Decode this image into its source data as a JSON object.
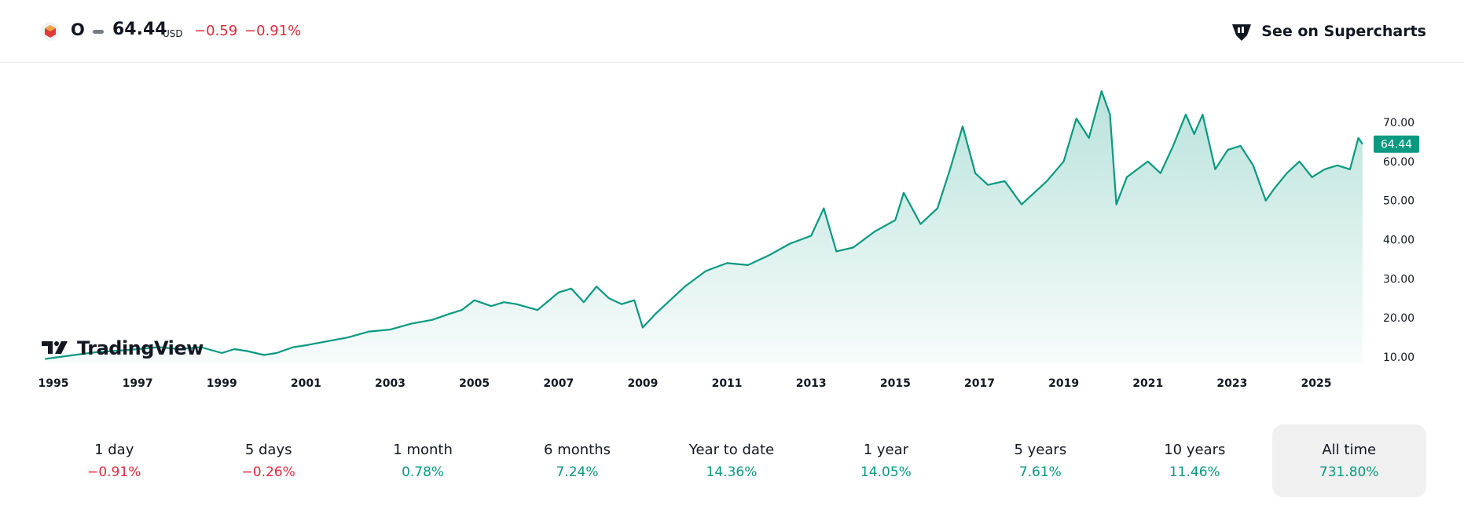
{
  "header": {
    "ticker": "O",
    "price": "64.44",
    "currency": "USD",
    "change": "−0.59",
    "change_pct": "−0.91%",
    "supercharts_label": "See on Supercharts"
  },
  "brand": "TradingView",
  "periods": [
    {
      "label": "1 day",
      "value": "−0.91%",
      "trend": "neg"
    },
    {
      "label": "5 days",
      "value": "−0.26%",
      "trend": "neg"
    },
    {
      "label": "1 month",
      "value": "0.78%",
      "trend": "pos"
    },
    {
      "label": "6 months",
      "value": "7.24%",
      "trend": "pos"
    },
    {
      "label": "Year to date",
      "value": "14.36%",
      "trend": "pos"
    },
    {
      "label": "1 year",
      "value": "14.05%",
      "trend": "pos"
    },
    {
      "label": "5 years",
      "value": "7.61%",
      "trend": "pos"
    },
    {
      "label": "10 years",
      "value": "11.46%",
      "trend": "pos"
    },
    {
      "label": "All time",
      "value": "731.80%",
      "trend": "pos",
      "active": true
    }
  ],
  "colors": {
    "line": "#089981",
    "negative": "#e0283c",
    "positive": "#089981",
    "price_tag": "#089981"
  },
  "chart_data": {
    "type": "area",
    "x_ticks": [
      "1995",
      "1997",
      "1999",
      "2001",
      "2003",
      "2005",
      "2007",
      "2009",
      "2011",
      "2013",
      "2015",
      "2017",
      "2019",
      "2021",
      "2023",
      "2025"
    ],
    "y_ticks": [
      "10.00",
      "20.00",
      "30.00",
      "40.00",
      "50.00",
      "60.00",
      "70.00"
    ],
    "ylim": [
      10,
      70
    ],
    "last_price_label": "64.44",
    "series": [
      {
        "x": [
          1994.8,
          1995.5,
          1996.0,
          1996.8,
          1997.5,
          1998.0,
          1998.5,
          1999.0,
          1999.3,
          1999.6,
          2000.0,
          2000.3,
          2000.7,
          2001.0,
          2001.5,
          2002.0,
          2002.5,
          2003.0,
          2003.5,
          2004.0,
          2004.4,
          2004.7,
          2005.0,
          2005.4,
          2005.7,
          2006.0,
          2006.5,
          2007.0,
          2007.3,
          2007.6,
          2007.9,
          2008.2,
          2008.5,
          2008.8,
          2009.0,
          2009.3,
          2009.6,
          2010.0,
          2010.5,
          2011.0,
          2011.5,
          2012.0,
          2012.5,
          2013.0,
          2013.3,
          2013.6,
          2014.0,
          2014.5,
          2015.0,
          2015.2,
          2015.6,
          2016.0,
          2016.3,
          2016.6,
          2016.9,
          2017.2,
          2017.6,
          2018.0,
          2018.3,
          2018.6,
          2019.0,
          2019.3,
          2019.6,
          2019.9,
          2020.1,
          2020.25,
          2020.5,
          2021.0,
          2021.3,
          2021.6,
          2021.9,
          2022.1,
          2022.3,
          2022.6,
          2022.9,
          2023.2,
          2023.5,
          2023.8,
          2024.0,
          2024.3,
          2024.6,
          2024.9,
          2025.2,
          2025.5,
          2025.8,
          2026.0,
          2026.1
        ],
        "y": [
          9.5,
          10.5,
          11.2,
          11.8,
          12.5,
          12.0,
          12.5,
          11.0,
          12.0,
          11.5,
          10.5,
          11.0,
          12.5,
          13.0,
          14.0,
          15.0,
          16.5,
          17.0,
          18.5,
          19.5,
          21.0,
          22.0,
          24.5,
          23.0,
          24.0,
          23.5,
          22.0,
          26.5,
          27.5,
          24.0,
          28.0,
          25.0,
          23.5,
          24.5,
          17.5,
          21.0,
          24.0,
          28.0,
          32.0,
          34.0,
          33.5,
          36.0,
          39.0,
          41.0,
          48.0,
          37.0,
          38.0,
          42.0,
          45.0,
          52.0,
          44.0,
          48.0,
          58.0,
          69.0,
          57.0,
          54.0,
          55.0,
          49.0,
          52.0,
          55.0,
          60.0,
          71.0,
          66.0,
          78.0,
          72.0,
          49.0,
          56.0,
          60.0,
          57.0,
          64.0,
          72.0,
          67.0,
          72.0,
          58.0,
          63.0,
          64.0,
          59.0,
          50.0,
          53.0,
          57.0,
          60.0,
          56.0,
          58.0,
          59.0,
          58.0,
          66.0,
          64.44
        ]
      }
    ]
  }
}
